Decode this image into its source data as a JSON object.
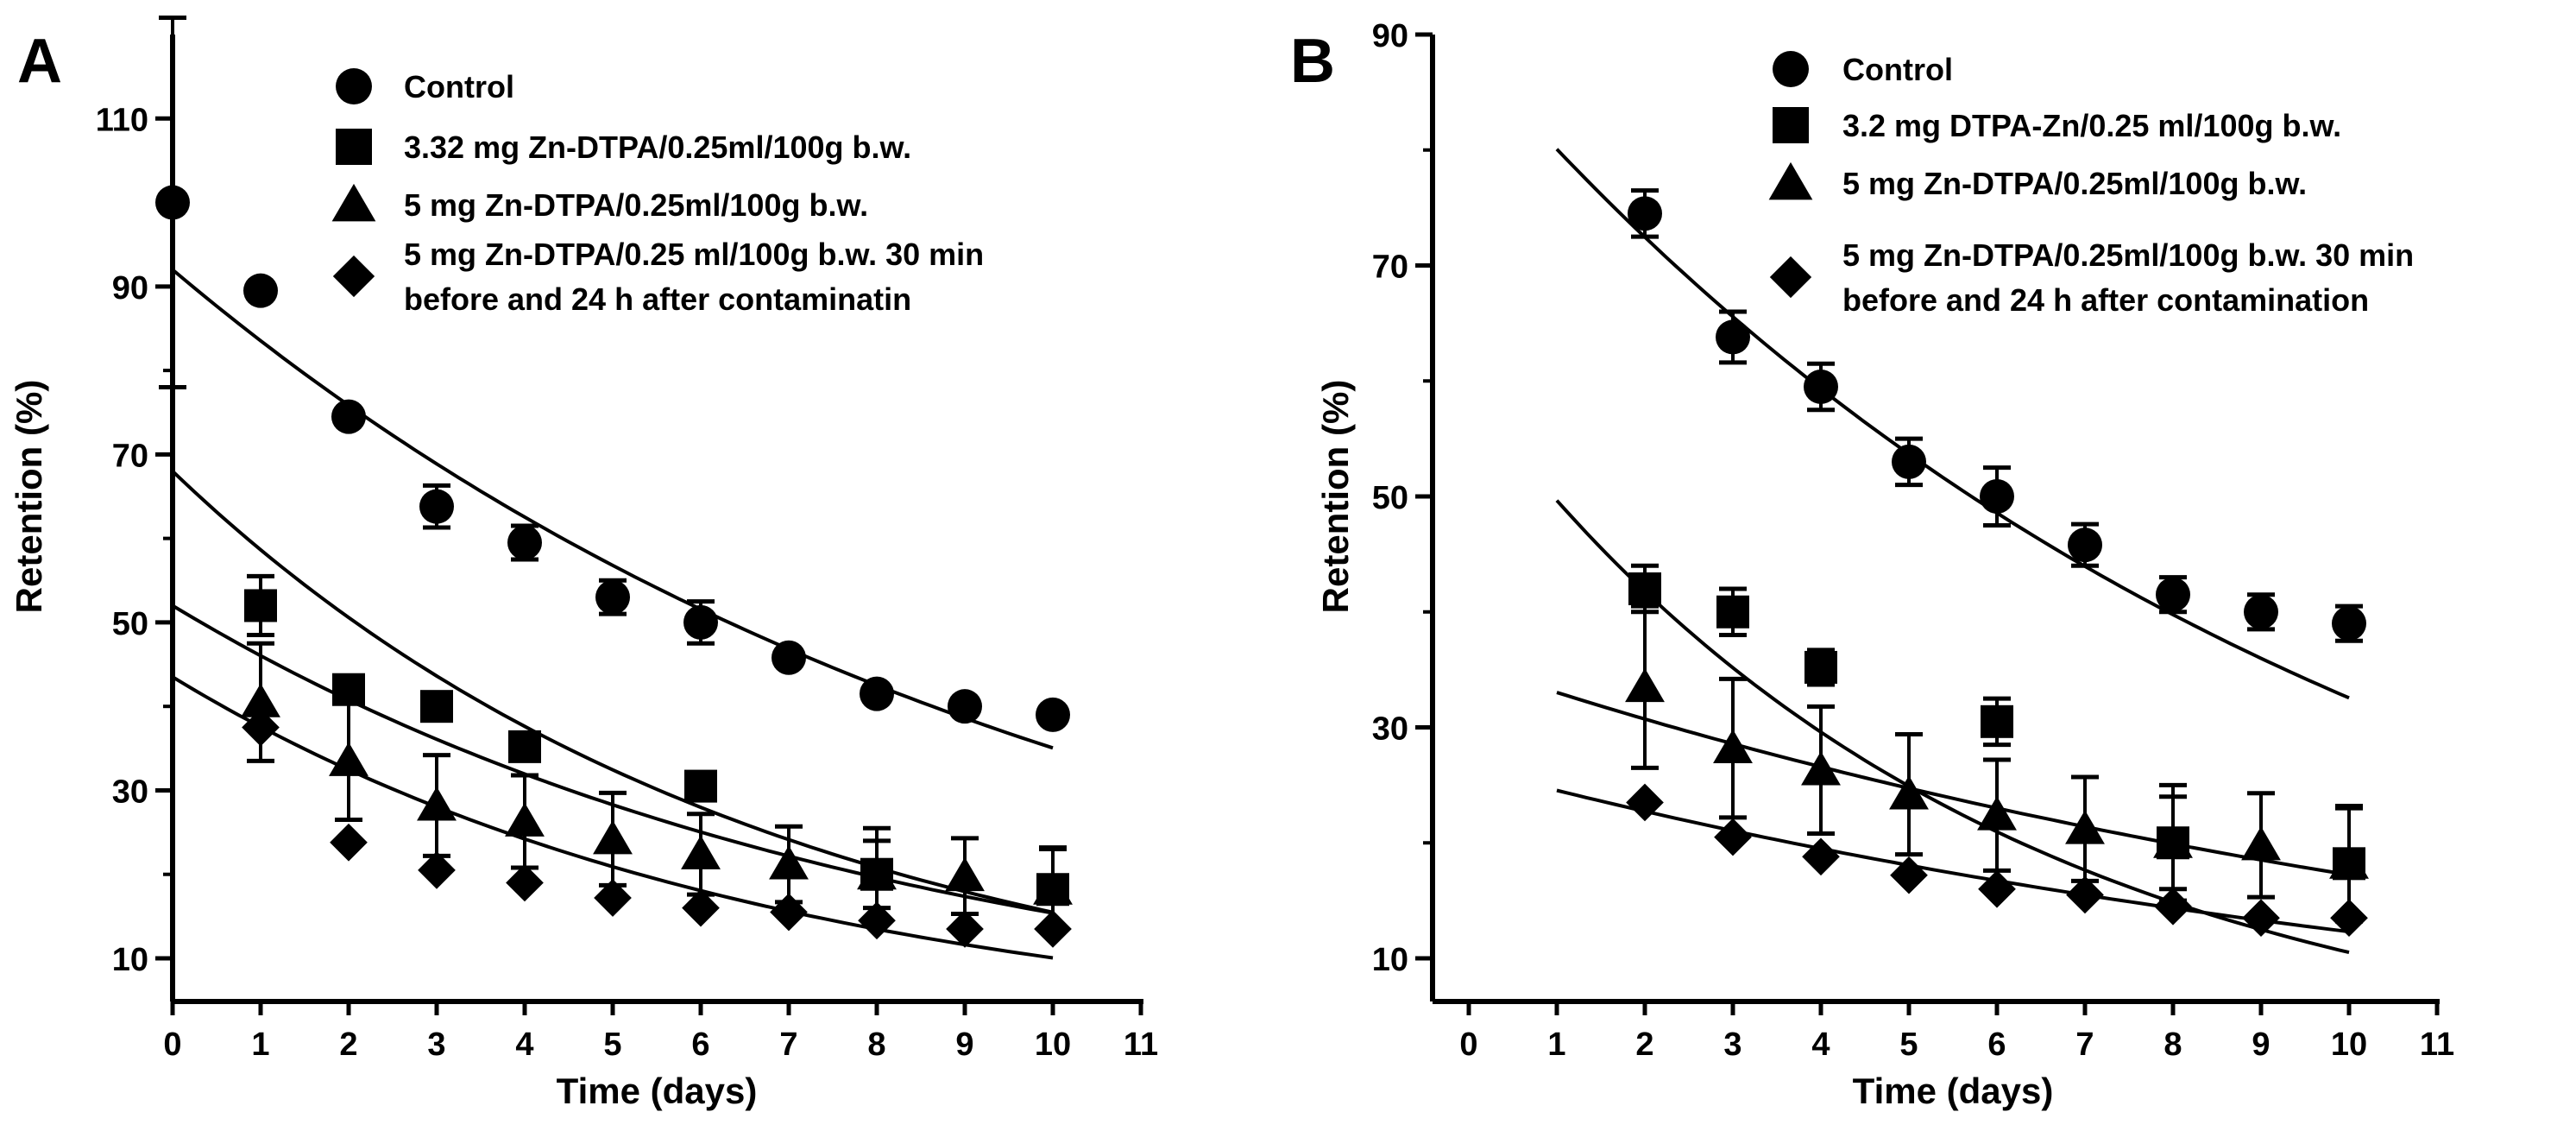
{
  "chart_data": [
    {
      "panel": "A",
      "type": "scatter",
      "title": "",
      "xlabel": "Time (days)",
      "ylabel": "Retention (%)",
      "xlim": [
        0,
        11
      ],
      "ylim": [
        10,
        120
      ],
      "xticks": [
        "0",
        "1",
        "2",
        "3",
        "4",
        "5",
        "6",
        "7",
        "8",
        "9",
        "10",
        "11"
      ],
      "yticks": [
        "10",
        "30",
        "50",
        "70",
        "90",
        "110"
      ],
      "grid": false,
      "legend_position": "top-right",
      "series": [
        {
          "name": "Control",
          "marker": "circle",
          "legend_lines": [
            "Control"
          ],
          "points": [
            {
              "x": 0,
              "y": 100,
              "err_hi": 22,
              "err_lo": 22
            },
            {
              "x": 1,
              "y": 89.5,
              "err_hi": 0,
              "err_lo": 0
            },
            {
              "x": 2,
              "y": 74.5,
              "err_hi": 0,
              "err_lo": 0
            },
            {
              "x": 3,
              "y": 63.8,
              "err_hi": 2.5,
              "err_lo": 2.5
            },
            {
              "x": 4,
              "y": 59.5,
              "err_hi": 2,
              "err_lo": 2
            },
            {
              "x": 5,
              "y": 53,
              "err_hi": 2,
              "err_lo": 2
            },
            {
              "x": 6,
              "y": 50,
              "err_hi": 2.5,
              "err_lo": 2.5
            },
            {
              "x": 7,
              "y": 45.8,
              "err_hi": 0,
              "err_lo": 0
            },
            {
              "x": 8,
              "y": 41.5,
              "err_hi": 0,
              "err_lo": 0
            },
            {
              "x": 9,
              "y": 40,
              "err_hi": 0,
              "err_lo": 0
            },
            {
              "x": 10,
              "y": 39,
              "err_hi": 0,
              "err_lo": 0
            }
          ],
          "fit": {
            "from": 0,
            "to": 10,
            "a": 92,
            "b": 0.0965
          }
        },
        {
          "name": "3.32 mg Zn-DTPA/0.25ml/100g b.w.",
          "marker": "square",
          "legend_lines": [
            "3.32 mg Zn-DTPA/0.25ml/100g b.w."
          ],
          "points": [
            {
              "x": 1,
              "y": 52,
              "err_hi": 3.5,
              "err_lo": 3.5
            },
            {
              "x": 2,
              "y": 42,
              "err_hi": 0,
              "err_lo": 0
            },
            {
              "x": 3,
              "y": 40,
              "err_hi": 0,
              "err_lo": 0
            },
            {
              "x": 4,
              "y": 35.2,
              "err_hi": 0,
              "err_lo": 0
            },
            {
              "x": 6,
              "y": 30.5,
              "err_hi": 0,
              "err_lo": 0
            },
            {
              "x": 8,
              "y": 20,
              "err_hi": 5.5,
              "err_lo": 5.5
            },
            {
              "x": 10,
              "y": 18.2,
              "err_hi": 5,
              "err_lo": 5
            }
          ],
          "fit": {
            "from": 0,
            "to": 10,
            "a": 68,
            "b": 0.148
          }
        },
        {
          "name": "5 mg Zn-DTPA/0.25ml/100g b.w.",
          "marker": "triangle",
          "legend_lines": [
            "5 mg Zn-DTPA/0.25ml/100g b.w."
          ],
          "points": [
            {
              "x": 1,
              "y": 40.5,
              "err_hi": 7,
              "err_lo": 7
            },
            {
              "x": 2,
              "y": 33.5,
              "err_hi": 7,
              "err_lo": 7
            },
            {
              "x": 3,
              "y": 28.2,
              "err_hi": 6,
              "err_lo": 6
            },
            {
              "x": 4,
              "y": 26.3,
              "err_hi": 5.5,
              "err_lo": 5.5
            },
            {
              "x": 5,
              "y": 24.2,
              "err_hi": 5.5,
              "err_lo": 5.5
            },
            {
              "x": 6,
              "y": 22.4,
              "err_hi": 4.8,
              "err_lo": 4.8
            },
            {
              "x": 7,
              "y": 21.2,
              "err_hi": 4.5,
              "err_lo": 4.5
            },
            {
              "x": 8,
              "y": 20,
              "err_hi": 4,
              "err_lo": 4
            },
            {
              "x": 9,
              "y": 19.8,
              "err_hi": 4.5,
              "err_lo": 4.5
            },
            {
              "x": 10,
              "y": 18.2,
              "err_hi": 4.8,
              "err_lo": 4.8
            }
          ],
          "fit": {
            "from": 0,
            "to": 10,
            "a": 52,
            "b": 0.1218
          }
        },
        {
          "name": "5 mg Zn-DTPA/0.25 ml/100g b.w. 30 min before and 24 h after contaminatin",
          "marker": "diamond",
          "legend_lines": [
            "5 mg Zn-DTPA/0.25 ml/100g b.w. 30 min",
            "before and 24 h after contaminatin"
          ],
          "points": [
            {
              "x": 1,
              "y": 37.5,
              "err_hi": 0,
              "err_lo": 0
            },
            {
              "x": 2,
              "y": 23.8,
              "err_hi": 0,
              "err_lo": 0
            },
            {
              "x": 3,
              "y": 20.5,
              "err_hi": 0,
              "err_lo": 0
            },
            {
              "x": 4,
              "y": 19,
              "err_hi": 0,
              "err_lo": 0
            },
            {
              "x": 5,
              "y": 17.2,
              "err_hi": 0,
              "err_lo": 0
            },
            {
              "x": 6,
              "y": 16,
              "err_hi": 0,
              "err_lo": 0
            },
            {
              "x": 7,
              "y": 15.5,
              "err_hi": 0,
              "err_lo": 0
            },
            {
              "x": 8,
              "y": 14.5,
              "err_hi": 0,
              "err_lo": 0
            },
            {
              "x": 9,
              "y": 13.5,
              "err_hi": 0,
              "err_lo": 0
            },
            {
              "x": 10,
              "y": 13.5,
              "err_hi": 0,
              "err_lo": 0
            }
          ],
          "fit": {
            "from": 0,
            "to": 10,
            "a": 43.5,
            "b": 0.1465
          }
        }
      ]
    },
    {
      "panel": "B",
      "type": "scatter",
      "title": "",
      "xlabel": "Time (days)",
      "ylabel": "Retention (%)",
      "xlim": [
        0,
        11
      ],
      "ylim": [
        10,
        90
      ],
      "xticks": [
        "0",
        "1",
        "2",
        "3",
        "4",
        "5",
        "6",
        "7",
        "8",
        "9",
        "10",
        "11"
      ],
      "yticks": [
        "10",
        "30",
        "50",
        "70",
        "90"
      ],
      "grid": false,
      "legend_position": "top-right",
      "series": [
        {
          "name": "Control",
          "marker": "circle",
          "legend_lines": [
            "Control"
          ],
          "points": [
            {
              "x": 2,
              "y": 74.5,
              "err_hi": 2,
              "err_lo": 2
            },
            {
              "x": 3,
              "y": 63.8,
              "err_hi": 2.2,
              "err_lo": 2.2
            },
            {
              "x": 4,
              "y": 59.5,
              "err_hi": 2,
              "err_lo": 2
            },
            {
              "x": 5,
              "y": 53,
              "err_hi": 2,
              "err_lo": 2
            },
            {
              "x": 6,
              "y": 50,
              "err_hi": 2.5,
              "err_lo": 2.5
            },
            {
              "x": 7,
              "y": 45.8,
              "err_hi": 1.8,
              "err_lo": 1.8
            },
            {
              "x": 8,
              "y": 41.5,
              "err_hi": 1.5,
              "err_lo": 1.5
            },
            {
              "x": 9,
              "y": 40,
              "err_hi": 1.5,
              "err_lo": 1.5
            },
            {
              "x": 10,
              "y": 39,
              "err_hi": 1.5,
              "err_lo": 1.5
            }
          ],
          "fit": {
            "from": 1,
            "to": 10,
            "a": 88.5,
            "b": 0.1
          }
        },
        {
          "name": "3.2 mg DTPA-Zn/0.25 ml/100g b.w.",
          "marker": "square",
          "legend_lines": [
            "3.2 mg DTPA-Zn/0.25 ml/100g b.w."
          ],
          "points": [
            {
              "x": 2,
              "y": 42,
              "err_hi": 2,
              "err_lo": 2
            },
            {
              "x": 3,
              "y": 40,
              "err_hi": 2,
              "err_lo": 2
            },
            {
              "x": 4,
              "y": 35.2,
              "err_hi": 1.5,
              "err_lo": 1.5
            },
            {
              "x": 6,
              "y": 30.5,
              "err_hi": 2,
              "err_lo": 2
            },
            {
              "x": 8,
              "y": 20,
              "err_hi": 5,
              "err_lo": 5
            },
            {
              "x": 10,
              "y": 18.2,
              "err_hi": 5,
              "err_lo": 5
            }
          ],
          "fit": {
            "from": 1,
            "to": 10,
            "a": 59,
            "b": 0.1725
          }
        },
        {
          "name": "5 mg Zn-DTPA/0.25ml/100g b.w.",
          "marker": "triangle",
          "legend_lines": [
            "5 mg Zn-DTPA/0.25ml/100g b.w."
          ],
          "points": [
            {
              "x": 2,
              "y": 33.5,
              "err_hi": 7,
              "err_lo": 7
            },
            {
              "x": 3,
              "y": 28.2,
              "err_hi": 6,
              "err_lo": 6
            },
            {
              "x": 4,
              "y": 26.3,
              "err_hi": 5.5,
              "err_lo": 5.5
            },
            {
              "x": 5,
              "y": 24.2,
              "err_hi": 5.2,
              "err_lo": 5.2
            },
            {
              "x": 6,
              "y": 22.4,
              "err_hi": 4.8,
              "err_lo": 4.8
            },
            {
              "x": 7,
              "y": 21.2,
              "err_hi": 4.5,
              "err_lo": 4.5
            },
            {
              "x": 8,
              "y": 20,
              "err_hi": 4,
              "err_lo": 4
            },
            {
              "x": 9,
              "y": 19.8,
              "err_hi": 4.5,
              "err_lo": 4.5
            },
            {
              "x": 10,
              "y": 18.2,
              "err_hi": 4.8,
              "err_lo": 4.8
            }
          ],
          "fit": {
            "from": 1,
            "to": 10,
            "a": 35.5,
            "b": 0.0723
          }
        },
        {
          "name": "5 mg Zn-DTPA/0.25ml/100g b.w. 30 min before and 24 h after contamination",
          "marker": "diamond",
          "legend_lines": [
            "5 mg Zn-DTPA/0.25ml/100g b.w. 30 min",
            "before and 24 h after contamination"
          ],
          "points": [
            {
              "x": 2,
              "y": 23.5,
              "err_hi": 0,
              "err_lo": 0
            },
            {
              "x": 3,
              "y": 20.5,
              "err_hi": 0,
              "err_lo": 0
            },
            {
              "x": 4,
              "y": 18.8,
              "err_hi": 0,
              "err_lo": 0
            },
            {
              "x": 5,
              "y": 17.2,
              "err_hi": 0,
              "err_lo": 0
            },
            {
              "x": 6,
              "y": 16,
              "err_hi": 0,
              "err_lo": 0
            },
            {
              "x": 7,
              "y": 15.5,
              "err_hi": 0,
              "err_lo": 0
            },
            {
              "x": 8,
              "y": 14.5,
              "err_hi": 0,
              "err_lo": 0
            },
            {
              "x": 9,
              "y": 13.5,
              "err_hi": 0,
              "err_lo": 0
            },
            {
              "x": 10,
              "y": 13.5,
              "err_hi": 0,
              "err_lo": 0
            }
          ],
          "fit": {
            "from": 1,
            "to": 10,
            "a": 26.5,
            "b": 0.0767
          }
        }
      ]
    }
  ]
}
